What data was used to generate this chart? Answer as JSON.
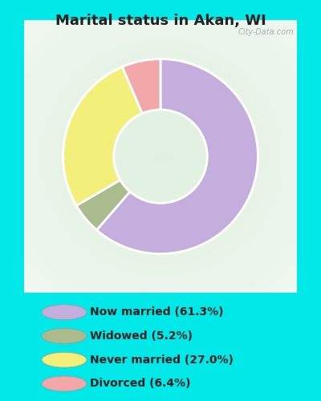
{
  "title": "Marital status in Akan, WI",
  "slices": [
    61.3,
    5.2,
    27.0,
    6.4
  ],
  "colors": [
    "#c4aede",
    "#aabb8e",
    "#f2f07a",
    "#f2a8a8"
  ],
  "labels": [
    "Now married (61.3%)",
    "Widowed (5.2%)",
    "Never married (27.0%)",
    "Divorced (6.4%)"
  ],
  "legend_colors": [
    "#c4aede",
    "#aabb8e",
    "#f2f07a",
    "#f2a8a8"
  ],
  "background_color": "#00e8e8",
  "chart_bg_color": "#d8edd8",
  "title_fontsize": 13,
  "title_color": "#222222",
  "watermark": "City-Data.com",
  "start_angle": 90,
  "legend_fontsize": 10
}
